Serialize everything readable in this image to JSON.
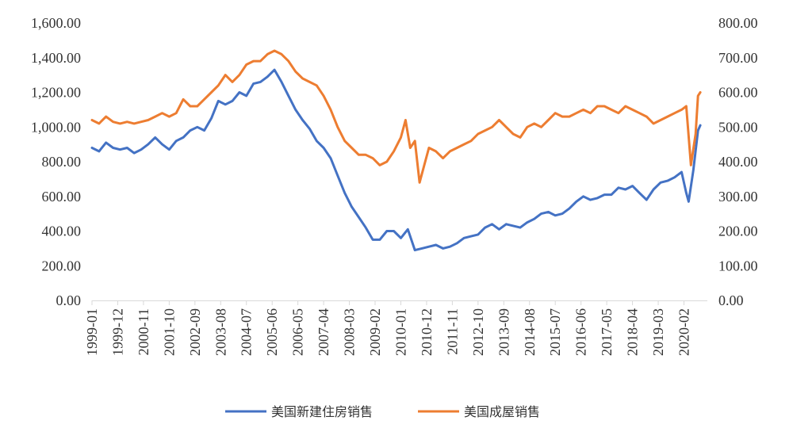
{
  "chart_data": {
    "type": "line",
    "title": "",
    "xlabel": "",
    "ylabel": "",
    "grid": false,
    "legend_position": "bottom",
    "x_range": [
      "1999-01",
      "2020-12"
    ],
    "y_left": {
      "range": [
        0,
        1600
      ],
      "ticks": [
        "0.00",
        "200.00",
        "400.00",
        "600.00",
        "800.00",
        "1,000.00",
        "1,200.00",
        "1,400.00",
        "1,600.00"
      ]
    },
    "y_right": {
      "range": [
        0,
        800
      ],
      "ticks": [
        "0.00",
        "100.00",
        "200.00",
        "300.00",
        "400.00",
        "500.00",
        "600.00",
        "700.00",
        "800.00"
      ]
    },
    "x_tick_labels": [
      "1999-01",
      "1999-12",
      "2000-11",
      "2001-10",
      "2002-09",
      "2003-08",
      "2004-07",
      "2005-06",
      "2006-05",
      "2007-04",
      "2008-03",
      "2009-02",
      "2010-01",
      "2010-12",
      "2011-11",
      "2012-10",
      "2013-09",
      "2014-08",
      "2015-07",
      "2016-06",
      "2017-05",
      "2018-04",
      "2019-03",
      "2020-02"
    ],
    "series": [
      {
        "name": "美国新建住房销售",
        "axis": "left",
        "color": "#4472C4",
        "points": [
          [
            "1999-01",
            880
          ],
          [
            "1999-04",
            860
          ],
          [
            "1999-07",
            910
          ],
          [
            "1999-10",
            880
          ],
          [
            "2000-01",
            870
          ],
          [
            "2000-04",
            880
          ],
          [
            "2000-07",
            850
          ],
          [
            "2000-10",
            870
          ],
          [
            "2001-01",
            900
          ],
          [
            "2001-04",
            940
          ],
          [
            "2001-07",
            900
          ],
          [
            "2001-10",
            870
          ],
          [
            "2002-01",
            920
          ],
          [
            "2002-04",
            940
          ],
          [
            "2002-07",
            980
          ],
          [
            "2002-10",
            1000
          ],
          [
            "2003-01",
            980
          ],
          [
            "2003-04",
            1050
          ],
          [
            "2003-07",
            1150
          ],
          [
            "2003-10",
            1130
          ],
          [
            "2004-01",
            1150
          ],
          [
            "2004-04",
            1200
          ],
          [
            "2004-07",
            1180
          ],
          [
            "2004-10",
            1250
          ],
          [
            "2005-01",
            1260
          ],
          [
            "2005-04",
            1290
          ],
          [
            "2005-07",
            1330
          ],
          [
            "2005-10",
            1260
          ],
          [
            "2006-01",
            1180
          ],
          [
            "2006-04",
            1100
          ],
          [
            "2006-07",
            1040
          ],
          [
            "2006-10",
            990
          ],
          [
            "2007-01",
            920
          ],
          [
            "2007-04",
            880
          ],
          [
            "2007-07",
            820
          ],
          [
            "2007-10",
            720
          ],
          [
            "2008-01",
            620
          ],
          [
            "2008-04",
            540
          ],
          [
            "2008-07",
            480
          ],
          [
            "2008-10",
            420
          ],
          [
            "2009-01",
            350
          ],
          [
            "2009-04",
            350
          ],
          [
            "2009-07",
            400
          ],
          [
            "2009-10",
            400
          ],
          [
            "2010-01",
            360
          ],
          [
            "2010-04",
            410
          ],
          [
            "2010-07",
            290
          ],
          [
            "2010-10",
            300
          ],
          [
            "2011-01",
            310
          ],
          [
            "2011-04",
            320
          ],
          [
            "2011-07",
            300
          ],
          [
            "2011-10",
            310
          ],
          [
            "2012-01",
            330
          ],
          [
            "2012-04",
            360
          ],
          [
            "2012-07",
            370
          ],
          [
            "2012-10",
            380
          ],
          [
            "2013-01",
            420
          ],
          [
            "2013-04",
            440
          ],
          [
            "2013-07",
            410
          ],
          [
            "2013-10",
            440
          ],
          [
            "2014-01",
            430
          ],
          [
            "2014-04",
            420
          ],
          [
            "2014-07",
            450
          ],
          [
            "2014-10",
            470
          ],
          [
            "2015-01",
            500
          ],
          [
            "2015-04",
            510
          ],
          [
            "2015-07",
            490
          ],
          [
            "2015-10",
            500
          ],
          [
            "2016-01",
            530
          ],
          [
            "2016-04",
            570
          ],
          [
            "2016-07",
            600
          ],
          [
            "2016-10",
            580
          ],
          [
            "2017-01",
            590
          ],
          [
            "2017-04",
            610
          ],
          [
            "2017-07",
            610
          ],
          [
            "2017-10",
            650
          ],
          [
            "2018-01",
            640
          ],
          [
            "2018-04",
            660
          ],
          [
            "2018-07",
            620
          ],
          [
            "2018-10",
            580
          ],
          [
            "2019-01",
            640
          ],
          [
            "2019-04",
            680
          ],
          [
            "2019-07",
            690
          ],
          [
            "2019-10",
            710
          ],
          [
            "2020-01",
            740
          ],
          [
            "2020-03",
            620
          ],
          [
            "2020-04",
            570
          ],
          [
            "2020-06",
            750
          ],
          [
            "2020-08",
            980
          ],
          [
            "2020-09",
            1010
          ]
        ]
      },
      {
        "name": "美国成屋销售",
        "axis": "right",
        "color": "#ED7D31",
        "points": [
          [
            "1999-01",
            520
          ],
          [
            "1999-04",
            510
          ],
          [
            "1999-07",
            530
          ],
          [
            "1999-10",
            515
          ],
          [
            "2000-01",
            510
          ],
          [
            "2000-04",
            515
          ],
          [
            "2000-07",
            510
          ],
          [
            "2000-10",
            515
          ],
          [
            "2001-01",
            520
          ],
          [
            "2001-04",
            530
          ],
          [
            "2001-07",
            540
          ],
          [
            "2001-10",
            530
          ],
          [
            "2002-01",
            540
          ],
          [
            "2002-04",
            580
          ],
          [
            "2002-07",
            560
          ],
          [
            "2002-10",
            560
          ],
          [
            "2003-01",
            580
          ],
          [
            "2003-04",
            600
          ],
          [
            "2003-07",
            620
          ],
          [
            "2003-10",
            650
          ],
          [
            "2004-01",
            630
          ],
          [
            "2004-04",
            650
          ],
          [
            "2004-07",
            680
          ],
          [
            "2004-10",
            690
          ],
          [
            "2005-01",
            690
          ],
          [
            "2005-04",
            710
          ],
          [
            "2005-07",
            720
          ],
          [
            "2005-10",
            710
          ],
          [
            "2006-01",
            690
          ],
          [
            "2006-04",
            660
          ],
          [
            "2006-07",
            640
          ],
          [
            "2006-10",
            630
          ],
          [
            "2007-01",
            620
          ],
          [
            "2007-04",
            590
          ],
          [
            "2007-07",
            550
          ],
          [
            "2007-10",
            500
          ],
          [
            "2008-01",
            460
          ],
          [
            "2008-04",
            440
          ],
          [
            "2008-07",
            420
          ],
          [
            "2008-10",
            420
          ],
          [
            "2009-01",
            410
          ],
          [
            "2009-04",
            390
          ],
          [
            "2009-07",
            400
          ],
          [
            "2009-10",
            430
          ],
          [
            "2010-01",
            470
          ],
          [
            "2010-03",
            520
          ],
          [
            "2010-05",
            440
          ],
          [
            "2010-07",
            460
          ],
          [
            "2010-09",
            340
          ],
          [
            "2010-11",
            390
          ],
          [
            "2011-01",
            440
          ],
          [
            "2011-04",
            430
          ],
          [
            "2011-07",
            410
          ],
          [
            "2011-10",
            430
          ],
          [
            "2012-01",
            440
          ],
          [
            "2012-04",
            450
          ],
          [
            "2012-07",
            460
          ],
          [
            "2012-10",
            480
          ],
          [
            "2013-01",
            490
          ],
          [
            "2013-04",
            500
          ],
          [
            "2013-07",
            520
          ],
          [
            "2013-10",
            500
          ],
          [
            "2014-01",
            480
          ],
          [
            "2014-04",
            470
          ],
          [
            "2014-07",
            500
          ],
          [
            "2014-10",
            510
          ],
          [
            "2015-01",
            500
          ],
          [
            "2015-04",
            520
          ],
          [
            "2015-07",
            540
          ],
          [
            "2015-10",
            530
          ],
          [
            "2016-01",
            530
          ],
          [
            "2016-04",
            540
          ],
          [
            "2016-07",
            550
          ],
          [
            "2016-10",
            540
          ],
          [
            "2017-01",
            560
          ],
          [
            "2017-04",
            560
          ],
          [
            "2017-07",
            550
          ],
          [
            "2017-10",
            540
          ],
          [
            "2018-01",
            560
          ],
          [
            "2018-04",
            550
          ],
          [
            "2018-07",
            540
          ],
          [
            "2018-10",
            530
          ],
          [
            "2019-01",
            510
          ],
          [
            "2019-04",
            520
          ],
          [
            "2019-07",
            530
          ],
          [
            "2019-10",
            540
          ],
          [
            "2020-01",
            550
          ],
          [
            "2020-03",
            560
          ],
          [
            "2020-05",
            390
          ],
          [
            "2020-07",
            480
          ],
          [
            "2020-08",
            590
          ],
          [
            "2020-09",
            600
          ]
        ]
      }
    ]
  }
}
